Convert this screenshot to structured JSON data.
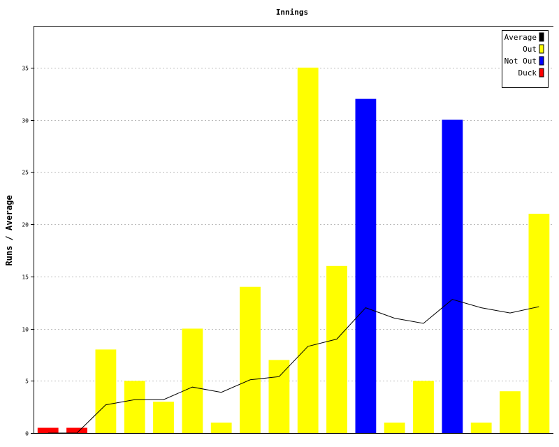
{
  "chart_data": {
    "type": "bar",
    "title": "Innings",
    "xlabel": "",
    "ylabel": "Runs / Average",
    "ylim": [
      0,
      39
    ],
    "yticks": [
      0,
      5,
      10,
      15,
      20,
      25,
      30,
      35
    ],
    "grid": true,
    "legend_position": "top-right",
    "legend": [
      {
        "label": "Average",
        "color": "#000000"
      },
      {
        "label": "Out",
        "color": "#ffff00"
      },
      {
        "label": "Not Out",
        "color": "#0000ff"
      },
      {
        "label": "Duck",
        "color": "#ff0000"
      }
    ],
    "bars": [
      {
        "value": 0.5,
        "status": "Duck"
      },
      {
        "value": 0.5,
        "status": "Duck"
      },
      {
        "value": 8,
        "status": "Out"
      },
      {
        "value": 5,
        "status": "Out"
      },
      {
        "value": 3,
        "status": "Out"
      },
      {
        "value": 10,
        "status": "Out"
      },
      {
        "value": 1,
        "status": "Out"
      },
      {
        "value": 14,
        "status": "Out"
      },
      {
        "value": 7,
        "status": "Out"
      },
      {
        "value": 35,
        "status": "Out"
      },
      {
        "value": 16,
        "status": "Out"
      },
      {
        "value": 32,
        "status": "Not Out"
      },
      {
        "value": 1,
        "status": "Out"
      },
      {
        "value": 5,
        "status": "Out"
      },
      {
        "value": 30,
        "status": "Not Out"
      },
      {
        "value": 1,
        "status": "Out"
      },
      {
        "value": 4,
        "status": "Out"
      },
      {
        "value": 21,
        "status": "Out"
      }
    ],
    "average": [
      0,
      0,
      2.7,
      3.2,
      3.2,
      4.4,
      3.9,
      5.1,
      5.4,
      8.3,
      9.0,
      12.0,
      11.0,
      10.5,
      12.8,
      12.0,
      11.5,
      12.1
    ]
  }
}
